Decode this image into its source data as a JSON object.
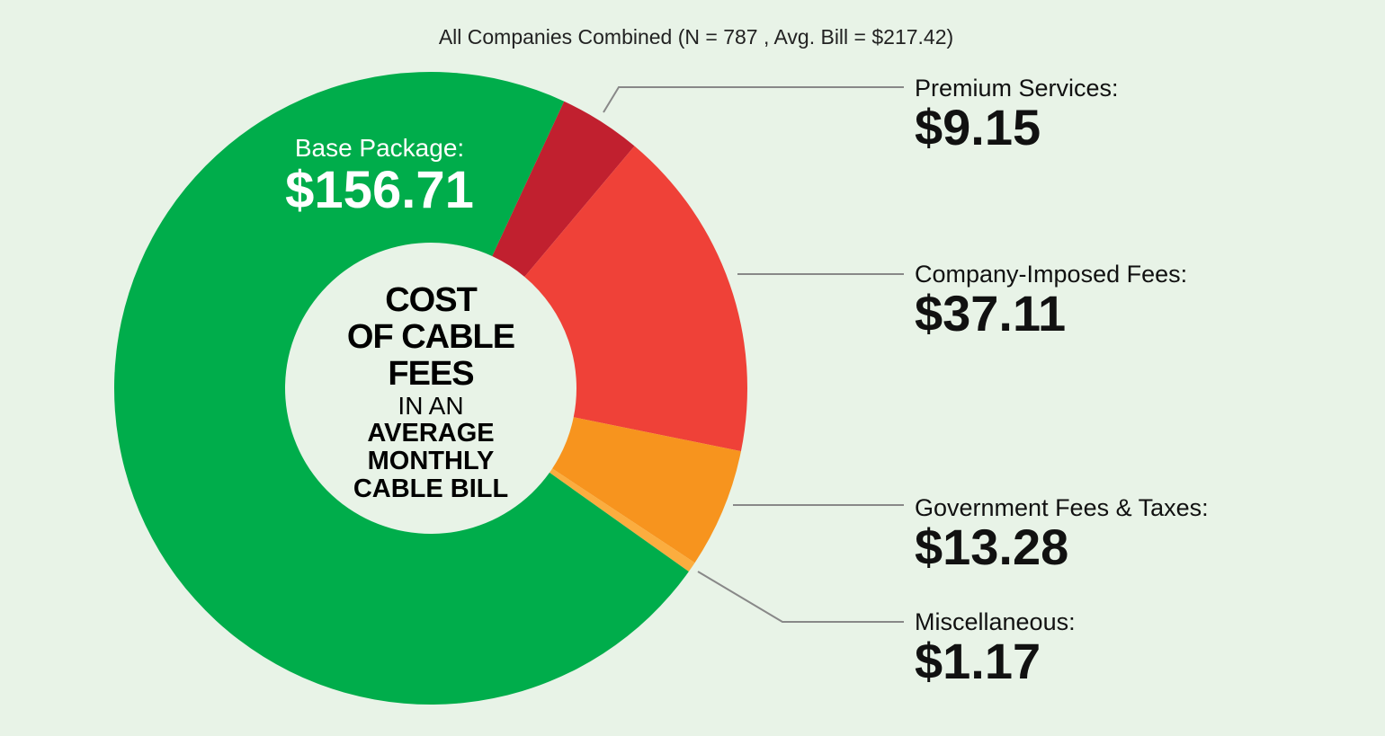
{
  "chart_data": {
    "type": "pie",
    "title": "All Companies Combined (N = 787 , Avg. Bill = $217.42)",
    "center_text": [
      "COST",
      "OF CABLE",
      "FEES",
      "IN AN",
      "AVERAGE",
      "MONTHLY",
      "CABLE BILL"
    ],
    "slices": [
      {
        "name": "Premium Services:",
        "value": 9.15,
        "label": "$9.15",
        "color": "#c1202f"
      },
      {
        "name": "Company-Imposed Fees:",
        "value": 37.11,
        "label": "$37.11",
        "color": "#ef4138"
      },
      {
        "name": "Government Fees & Taxes:",
        "value": 13.28,
        "label": "$13.28",
        "color": "#f7941e"
      },
      {
        "name": "Miscellaneous:",
        "value": 1.17,
        "label": "$1.17",
        "color": "#fbad3f"
      },
      {
        "name": "Base Package:",
        "value": 156.71,
        "label": "$156.71",
        "color": "#00ad4b"
      }
    ]
  }
}
